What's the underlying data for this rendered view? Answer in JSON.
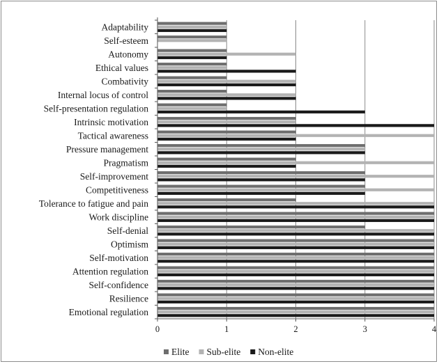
{
  "chart_data": {
    "type": "bar",
    "orientation": "horizontal",
    "categories": [
      "Adaptability",
      "Self-esteem",
      "Autonomy",
      "Ethical values",
      "Combativity",
      "Internal locus of control",
      "Self-presentation regulation",
      "Intrinsic motivation",
      "Tactical awareness",
      "Pressure management",
      "Pragmatism",
      "Self-improvement",
      "Competitiveness",
      "Tolerance to fatigue and pain",
      "Work discipline",
      "Self-denial",
      "Optimism",
      "Self-motivation",
      "Attention regulation",
      "Self-confidence",
      "Resilience",
      "Emotional regulation"
    ],
    "series": [
      {
        "name": "Elite",
        "color": "#6e6e6e",
        "values": [
          1,
          1,
          1,
          1,
          1,
          1,
          1,
          2,
          2,
          3,
          2,
          3,
          3,
          2,
          4,
          3,
          4,
          4,
          4,
          4,
          4,
          4
        ]
      },
      {
        "name": "Sub-elite",
        "color": "#b3b3b3",
        "values": [
          1,
          1,
          2,
          1,
          2,
          2,
          1,
          2,
          4,
          3,
          4,
          4,
          4,
          4,
          4,
          4,
          4,
          4,
          4,
          4,
          4,
          4
        ]
      },
      {
        "name": "Non-elite",
        "color": "#1a1a1a",
        "values": [
          1,
          0,
          1,
          2,
          2,
          2,
          3,
          4,
          2,
          3,
          2,
          3,
          3,
          4,
          4,
          4,
          4,
          4,
          4,
          4,
          4,
          4
        ]
      }
    ],
    "xlim": [
      0,
      4
    ],
    "xticks": [
      0,
      1,
      2,
      3,
      4
    ],
    "grid": "vertical",
    "legend_position": "bottom"
  }
}
